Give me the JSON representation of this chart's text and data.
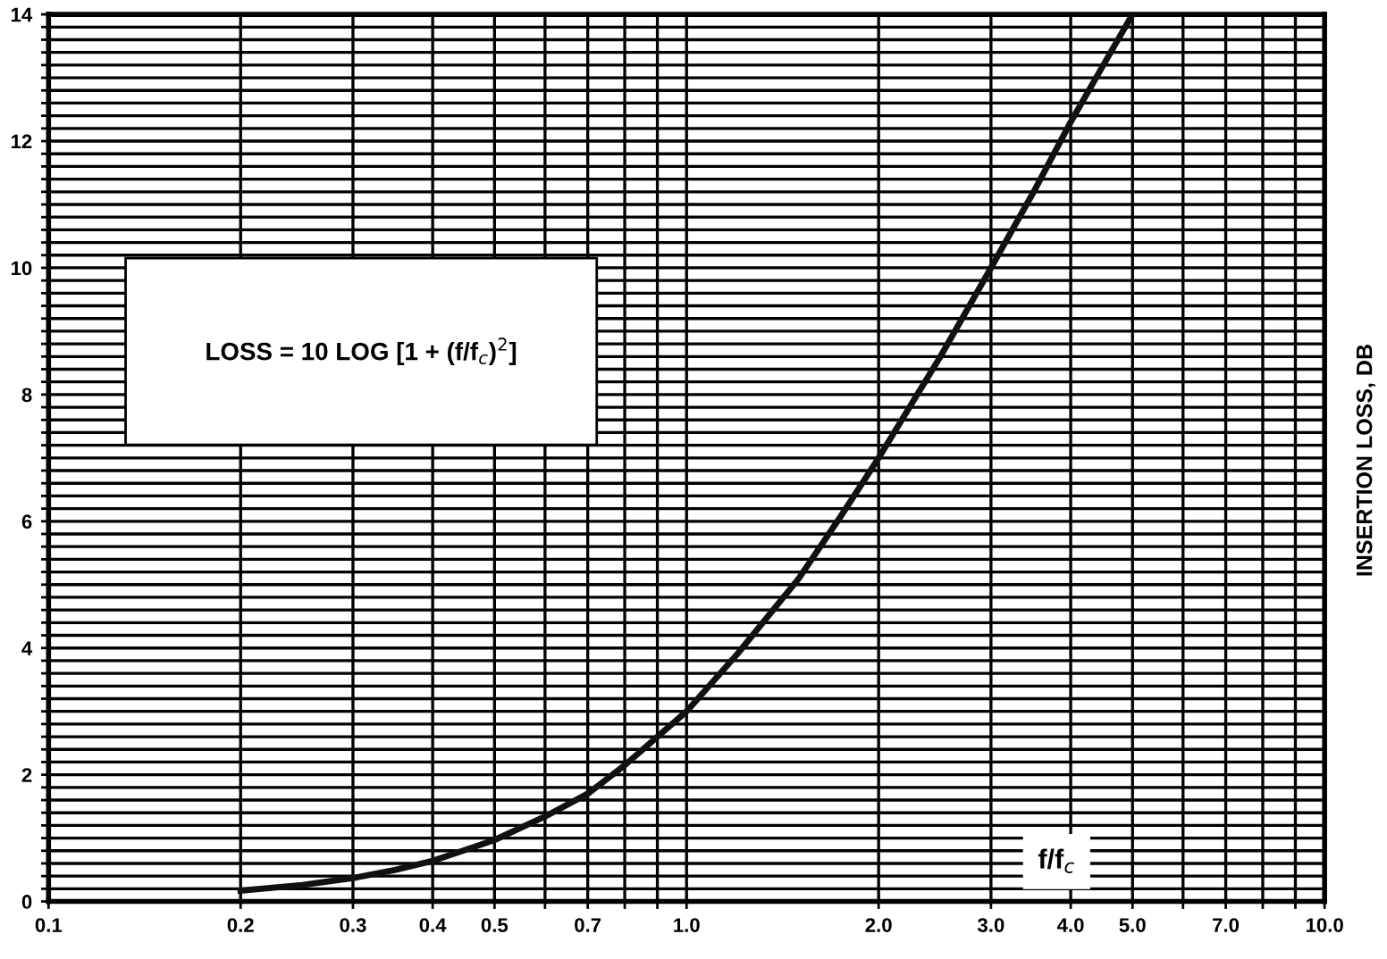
{
  "chart_data": {
    "type": "line",
    "xlabel": "f/f$_{c}$",
    "y2label": "INSERTION LOSS, DB",
    "annotations": [
      "LOSS = 10 LOG [1 + (f/f$_{c}$)$^{2}$]"
    ],
    "log": "x",
    "grid": true,
    "legend": false,
    "marker": "none",
    "line_style": "solid",
    "series": [
      {
        "color": "#111111",
        "x": [
          0.2,
          0.25,
          0.3,
          0.35,
          0.4,
          0.5,
          0.6,
          0.7,
          0.8,
          0.9,
          1.0,
          1.2,
          1.5,
          1.75,
          2.0,
          2.5,
          3.0,
          3.5,
          4.0,
          4.5,
          5.0
        ],
        "values": [
          0.17,
          0.26,
          0.37,
          0.5,
          0.64,
          0.97,
          1.34,
          1.7,
          2.15,
          2.6,
          3.0,
          3.9,
          5.1,
          6.1,
          7.0,
          8.6,
          10.0,
          11.2,
          12.3,
          13.2,
          14.0
        ]
      }
    ],
    "xlim": [
      0.1,
      10
    ],
    "xticks": [
      {
        "value": 0.1,
        "label": "0.1"
      },
      0.2,
      0.3,
      0.4,
      0.5,
      {
        "value": 0.6,
        "label": null
      },
      0.7,
      {
        "value": 0.8,
        "label": null
      },
      {
        "value": 0.9,
        "label": null
      },
      {
        "value": 1,
        "label": "1.0"
      },
      {
        "value": 2,
        "label": "2.0"
      },
      {
        "value": 3,
        "label": "3.0"
      },
      {
        "value": 4,
        "label": "4.0"
      },
      {
        "value": 5,
        "label": "5.0"
      },
      {
        "value": 6,
        "label": null
      },
      {
        "value": 7,
        "label": "7.0"
      },
      {
        "value": 8,
        "label": null
      },
      {
        "value": 9,
        "label": null
      },
      {
        "value": 10,
        "label": "10.0"
      }
    ],
    "ylim": [
      0,
      14
    ],
    "yticks": [
      0,
      {
        "value": 0.2,
        "label": null
      },
      {
        "value": 0.4,
        "label": null
      },
      {
        "value": 0.6,
        "label": null
      },
      {
        "value": 0.8,
        "label": null
      },
      {
        "value": 1,
        "label": null
      },
      {
        "value": 1.2,
        "label": null
      },
      {
        "value": 1.4,
        "label": null
      },
      {
        "value": 1.6,
        "label": null
      },
      {
        "value": 1.8,
        "label": null
      },
      2,
      {
        "value": 2.2,
        "label": null
      },
      {
        "value": 2.4,
        "label": null
      },
      {
        "value": 2.6,
        "label": null
      },
      {
        "value": 2.8,
        "label": null
      },
      {
        "value": 3,
        "label": null
      },
      {
        "value": 3.2,
        "label": null
      },
      {
        "value": 3.4,
        "label": null
      },
      {
        "value": 3.6,
        "label": null
      },
      {
        "value": 3.8,
        "label": null
      },
      4,
      {
        "value": 4.2,
        "label": null
      },
      {
        "value": 4.4,
        "label": null
      },
      {
        "value": 4.6,
        "label": null
      },
      {
        "value": 4.8,
        "label": null
      },
      {
        "value": 5,
        "label": null
      },
      {
        "value": 5.2,
        "label": null
      },
      {
        "value": 5.4,
        "label": null
      },
      {
        "value": 5.6,
        "label": null
      },
      {
        "value": 5.8,
        "label": null
      },
      6,
      {
        "value": 6.2,
        "label": null
      },
      {
        "value": 6.4,
        "label": null
      },
      {
        "value": 6.6,
        "label": null
      },
      {
        "value": 6.8,
        "label": null
      },
      {
        "value": 7,
        "label": null
      },
      {
        "value": 7.2,
        "label": null
      },
      {
        "value": 7.4,
        "label": null
      },
      {
        "value": 7.6,
        "label": null
      },
      {
        "value": 7.8,
        "label": null
      },
      8,
      {
        "value": 8.2,
        "label": null
      },
      {
        "value": 8.4,
        "label": null
      },
      {
        "value": 8.6,
        "label": null
      },
      {
        "value": 8.8,
        "label": null
      },
      {
        "value": 9,
        "label": null
      },
      {
        "value": 9.2,
        "label": null
      },
      {
        "value": 9.4,
        "label": null
      },
      {
        "value": 9.6,
        "label": null
      },
      {
        "value": 9.8,
        "label": null
      },
      10,
      {
        "value": 10.2,
        "label": null
      },
      {
        "value": 10.4,
        "label": null
      },
      {
        "value": 10.6,
        "label": null
      },
      {
        "value": 10.8,
        "label": null
      },
      {
        "value": 11,
        "label": null
      },
      {
        "value": 11.2,
        "label": null
      },
      {
        "value": 11.4,
        "label": null
      },
      {
        "value": 11.6,
        "label": null
      },
      {
        "value": 11.8,
        "label": null
      },
      12,
      {
        "value": 12.2,
        "label": null
      },
      {
        "value": 12.4,
        "label": null
      },
      {
        "value": 12.6,
        "label": null
      },
      {
        "value": 12.8,
        "label": null
      },
      {
        "value": 13,
        "label": null
      },
      {
        "value": 13.2,
        "label": null
      },
      {
        "value": 13.4,
        "label": null
      },
      {
        "value": 13.6,
        "label": null
      },
      {
        "value": 13.8,
        "label": null
      },
      14
    ]
  }
}
